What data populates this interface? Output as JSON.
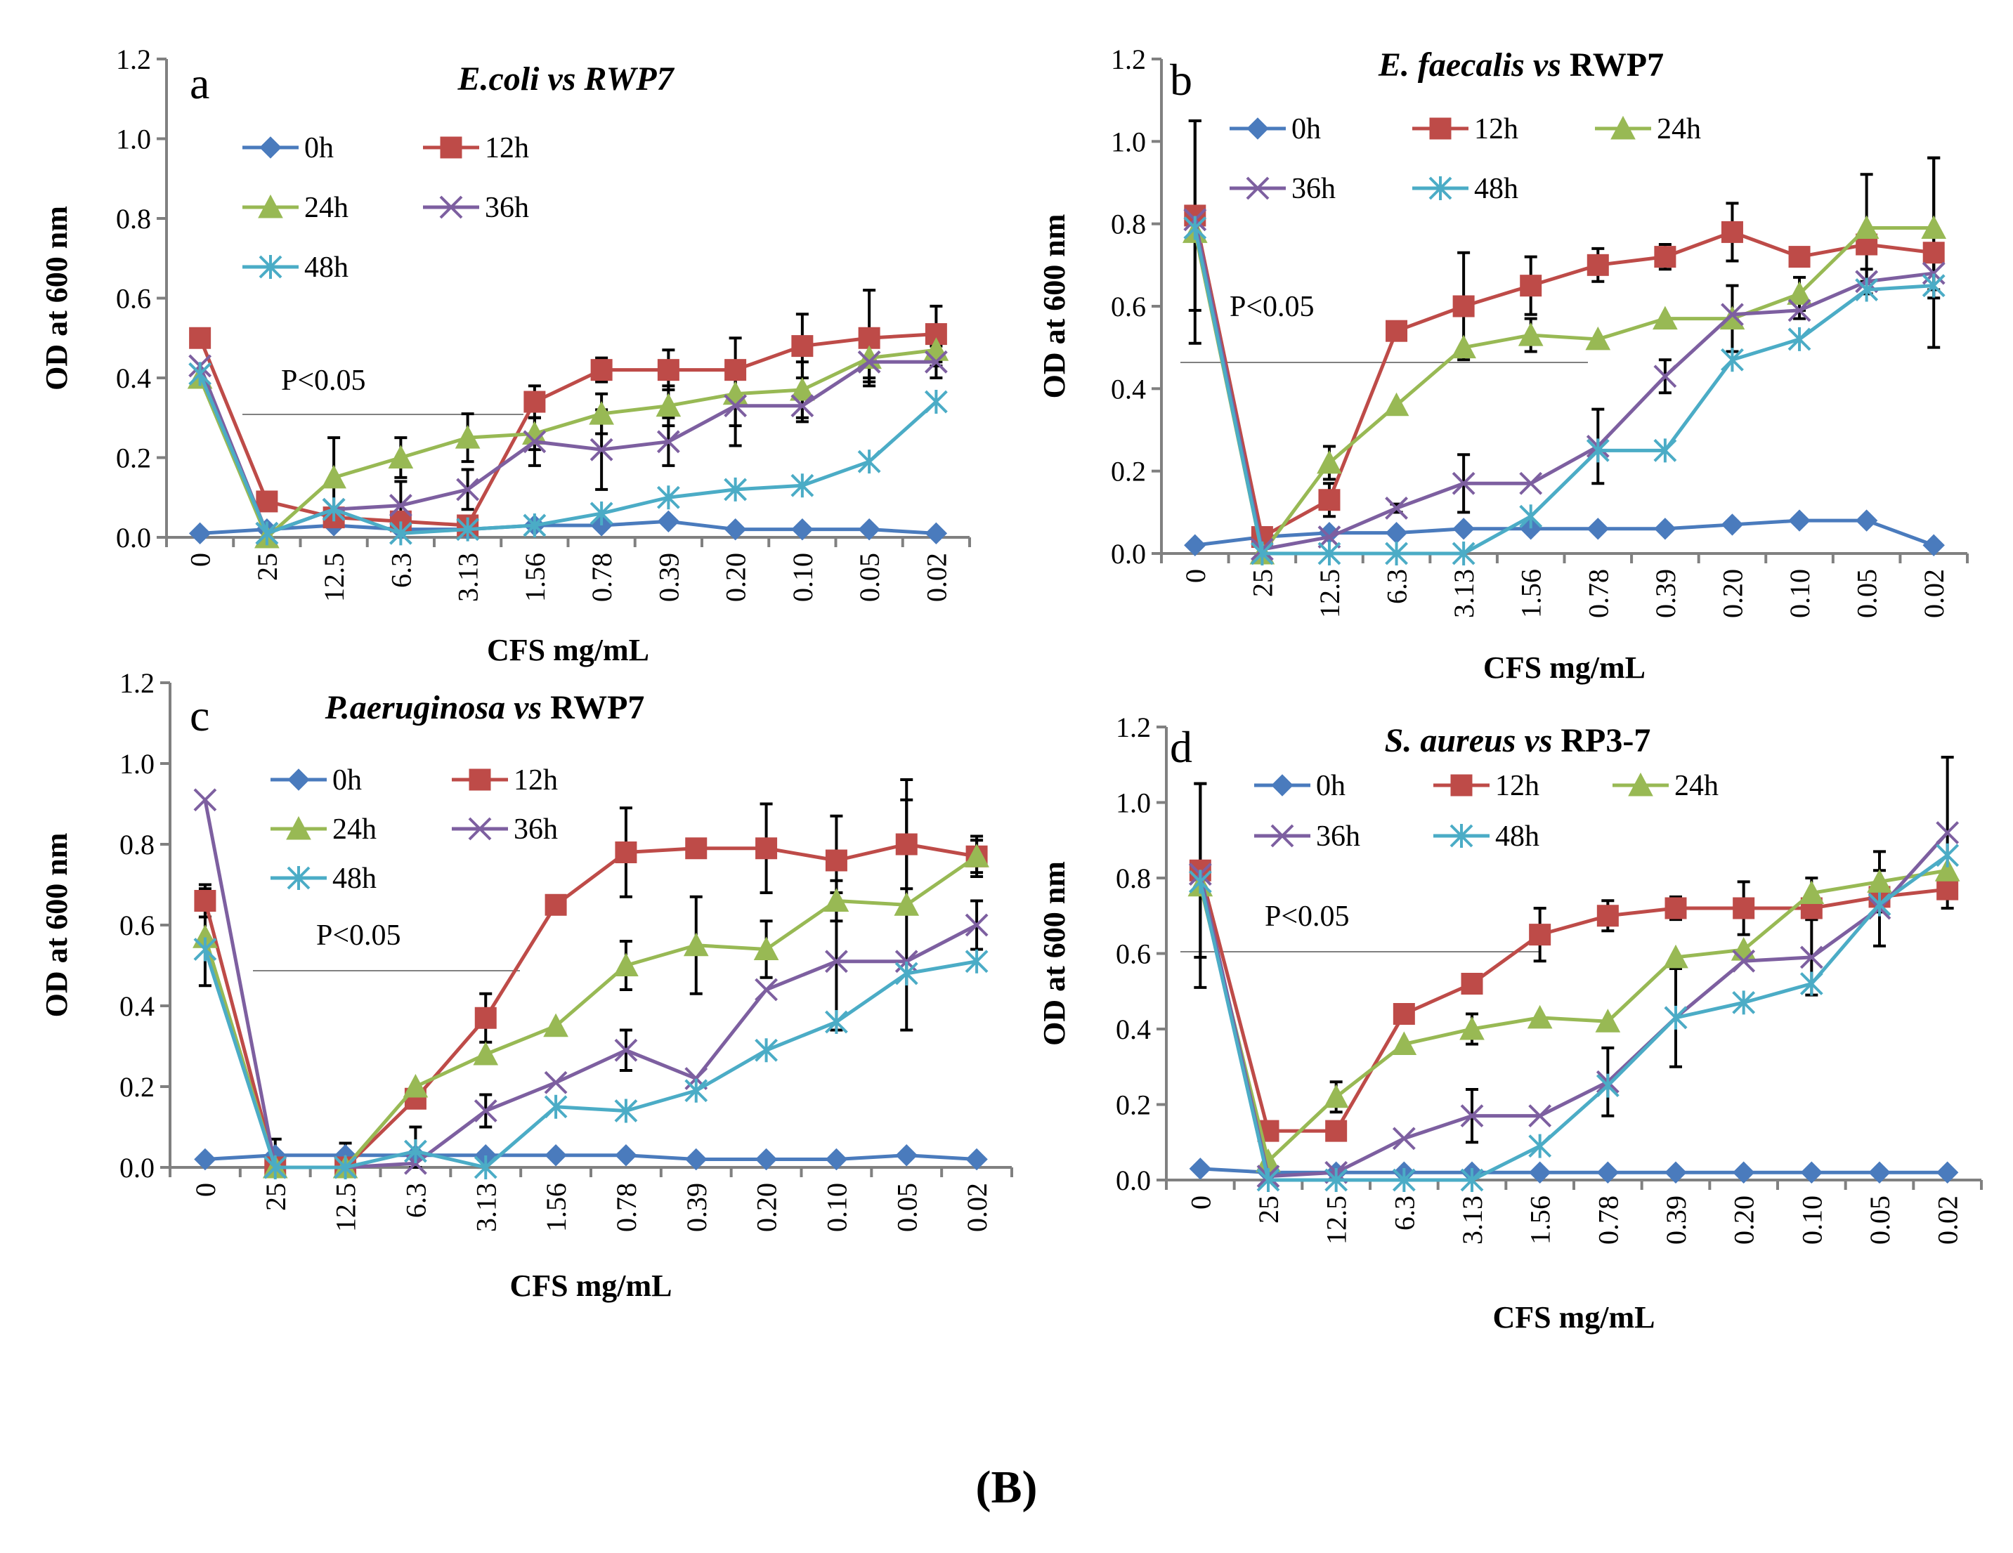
{
  "figure_caption": "(B)",
  "colors": {
    "0h": "#4a7bbd",
    "12h": "#be4b48",
    "24h": "#98b954",
    "36h": "#7d5fa0",
    "48h": "#4bacc6",
    "axis": "#808080",
    "error_bar": "#000000"
  },
  "chart_data": [
    {
      "type": "line",
      "panel_letter": "a",
      "title_italic": "E.coli vs RWP7",
      "title_normal": "",
      "xlabel": "CFS mg/mL",
      "ylabel": "OD at 600 nm",
      "ylim": [
        0,
        1.2
      ],
      "yticks": [
        "0.0",
        "0.2",
        "0.4",
        "0.6",
        "0.8",
        "1.0",
        "1.2"
      ],
      "categories": [
        "0",
        "25",
        "12.5",
        "6.3",
        "3.13",
        "1.56",
        "0.78",
        "0.39",
        "0.20",
        "0.10",
        "0.05",
        "0.02"
      ],
      "annotation": "P<0.05",
      "series": [
        {
          "name": "0h",
          "marker": "diamond",
          "values": [
            0.01,
            0.02,
            0.03,
            0.02,
            0.02,
            0.03,
            0.03,
            0.04,
            0.02,
            0.02,
            0.02,
            0.01
          ],
          "errors": [
            0,
            0,
            0,
            0,
            0,
            0,
            0,
            0,
            0,
            0,
            0,
            0
          ]
        },
        {
          "name": "12h",
          "marker": "square",
          "values": [
            0.5,
            0.09,
            0.05,
            0.04,
            0.03,
            0.34,
            0.42,
            0.42,
            0.42,
            0.48,
            0.5,
            0.51
          ],
          "errors": [
            0,
            0,
            0,
            0,
            0,
            0.04,
            0.03,
            0.05,
            0.08,
            0.08,
            0.12,
            0.07
          ]
        },
        {
          "name": "24h",
          "marker": "triangle",
          "values": [
            0.4,
            0.0,
            0.15,
            0.2,
            0.25,
            0.26,
            0.31,
            0.33,
            0.36,
            0.37,
            0.45,
            0.47
          ],
          "errors": [
            0,
            0,
            0.1,
            0.05,
            0.06,
            0.04,
            0.05,
            0.05,
            0.08,
            0.07,
            0.05,
            0.04
          ]
        },
        {
          "name": "36h",
          "marker": "x",
          "values": [
            0.43,
            0.01,
            0.07,
            0.08,
            0.12,
            0.24,
            0.22,
            0.24,
            0.33,
            0.33,
            0.44,
            0.44
          ],
          "errors": [
            0,
            0,
            0,
            0.06,
            0.05,
            0.06,
            0.1,
            0.06,
            0.1,
            0.04,
            0.05,
            0.04
          ]
        },
        {
          "name": "48h",
          "marker": "asterisk",
          "values": [
            0.41,
            0.01,
            0.07,
            0.01,
            0.02,
            0.03,
            0.06,
            0.1,
            0.12,
            0.13,
            0.19,
            0.34
          ],
          "errors": [
            0,
            0,
            0,
            0,
            0,
            0,
            0,
            0,
            0,
            0,
            0,
            0
          ]
        }
      ],
      "legend_rows": [
        [
          "0h",
          "12h"
        ],
        [
          "24h",
          "36h"
        ],
        [
          "48h"
        ]
      ]
    },
    {
      "type": "line",
      "panel_letter": "b",
      "title_italic": "E. faecalis vs",
      "title_normal": "RWP7",
      "xlabel": "CFS mg/mL",
      "ylabel": "OD at 600 nm",
      "ylim": [
        0,
        1.2
      ],
      "yticks": [
        "0.0",
        "0.2",
        "0.4",
        "0.6",
        "0.8",
        "1.0",
        "1.2"
      ],
      "categories": [
        "0",
        "25",
        "12.5",
        "6.3",
        "3.13",
        "1.56",
        "0.78",
        "0.39",
        "0.20",
        "0.10",
        "0.05",
        "0.02"
      ],
      "annotation": "P<0.05",
      "series": [
        {
          "name": "0h",
          "marker": "diamond",
          "values": [
            0.02,
            0.04,
            0.05,
            0.05,
            0.06,
            0.06,
            0.06,
            0.06,
            0.07,
            0.08,
            0.08,
            0.02
          ],
          "errors": [
            0,
            0,
            0,
            0,
            0,
            0,
            0,
            0,
            0,
            0,
            0,
            0
          ]
        },
        {
          "name": "12h",
          "marker": "square",
          "values": [
            0.82,
            0.04,
            0.13,
            0.54,
            0.6,
            0.65,
            0.7,
            0.72,
            0.78,
            0.72,
            0.75,
            0.73
          ],
          "errors": [
            0.23,
            0,
            0.04,
            0,
            0.13,
            0.07,
            0.04,
            0.03,
            0.07,
            0,
            0,
            0.23
          ]
        },
        {
          "name": "24h",
          "marker": "triangle",
          "values": [
            0.78,
            0.0,
            0.22,
            0.36,
            0.5,
            0.53,
            0.52,
            0.57,
            0.57,
            0.63,
            0.79,
            0.79
          ],
          "errors": [
            0.27,
            0,
            0.04,
            0,
            0,
            0.04,
            0,
            0,
            0.08,
            0.04,
            0.13,
            0.17
          ]
        },
        {
          "name": "36h",
          "marker": "x",
          "values": [
            0.81,
            0.01,
            0.04,
            0.11,
            0.17,
            0.17,
            0.26,
            0.43,
            0.58,
            0.59,
            0.66,
            0.68
          ],
          "errors": [
            0,
            0,
            0,
            0.01,
            0.07,
            0,
            0.09,
            0.04,
            0,
            0.02,
            0.03,
            0.04
          ]
        },
        {
          "name": "48h",
          "marker": "asterisk",
          "values": [
            0.79,
            0.0,
            0.0,
            0.0,
            0.0,
            0.09,
            0.25,
            0.25,
            0.47,
            0.52,
            0.64,
            0.65
          ],
          "errors": [
            0,
            0,
            0,
            0,
            0,
            0,
            0,
            0,
            0,
            0,
            0,
            0
          ]
        }
      ],
      "legend_rows": [
        [
          "0h",
          "12h",
          "24h"
        ],
        [
          "36h",
          "48h"
        ]
      ]
    },
    {
      "type": "line",
      "panel_letter": "c",
      "title_italic": "P.aeruginosa vs",
      "title_normal": "RWP7",
      "xlabel": "CFS mg/mL",
      "ylabel": "OD at 600 nm",
      "ylim": [
        0,
        1.2
      ],
      "yticks": [
        "0.0",
        "0.2",
        "0.4",
        "0.6",
        "0.8",
        "1.0",
        "1.2"
      ],
      "categories": [
        "0",
        "25",
        "12.5",
        "6.3",
        "3.13",
        "1.56",
        "0.78",
        "0.39",
        "0.20",
        "0.10",
        "0.05",
        "0.02"
      ],
      "annotation": "P<0.05",
      "series": [
        {
          "name": "0h",
          "marker": "diamond",
          "values": [
            0.02,
            0.03,
            0.03,
            0.03,
            0.03,
            0.03,
            0.03,
            0.02,
            0.02,
            0.02,
            0.03,
            0.02
          ],
          "errors": [
            0,
            0.04,
            0.03,
            0,
            0,
            0,
            0,
            0,
            0,
            0,
            0,
            0
          ]
        },
        {
          "name": "12h",
          "marker": "square",
          "values": [
            0.66,
            0.0,
            0.0,
            0.17,
            0.37,
            0.65,
            0.78,
            0.79,
            0.79,
            0.76,
            0.8,
            0.77
          ],
          "errors": [
            0.04,
            0,
            0,
            0,
            0.06,
            0,
            0.11,
            0,
            0.11,
            0.11,
            0.11,
            0.05
          ]
        },
        {
          "name": "24h",
          "marker": "triangle",
          "values": [
            0.57,
            0.0,
            0.0,
            0.2,
            0.28,
            0.35,
            0.5,
            0.55,
            0.54,
            0.66,
            0.65,
            0.77
          ],
          "errors": [
            0.12,
            0,
            0,
            0,
            0,
            0,
            0.06,
            0.12,
            0.07,
            0.05,
            0.31,
            0.04
          ]
        },
        {
          "name": "36h",
          "marker": "x",
          "values": [
            0.91,
            0.0,
            0.0,
            0.01,
            0.14,
            0.21,
            0.29,
            0.22,
            0.44,
            0.51,
            0.51,
            0.6
          ],
          "errors": [
            0,
            0,
            0,
            0,
            0.04,
            0,
            0.05,
            0,
            0,
            0.17,
            0,
            0.06
          ]
        },
        {
          "name": "48h",
          "marker": "asterisk",
          "values": [
            0.54,
            0.0,
            0.0,
            0.04,
            0.0,
            0.15,
            0.14,
            0.19,
            0.29,
            0.36,
            0.48,
            0.51
          ],
          "errors": [
            0,
            0,
            0,
            0.06,
            0,
            0,
            0,
            0,
            0,
            0,
            0,
            0
          ]
        }
      ],
      "legend_rows": [
        [
          "0h",
          "12h"
        ],
        [
          "24h",
          "36h"
        ],
        [
          "48h"
        ]
      ]
    },
    {
      "type": "line",
      "panel_letter": "d",
      "title_italic": "S. aureus vs",
      "title_normal": "RP3-7",
      "xlabel": "CFS mg/mL",
      "ylabel": "OD at 600 nm",
      "ylim": [
        0,
        1.2
      ],
      "yticks": [
        "0.0",
        "0.2",
        "0.4",
        "0.6",
        "0.8",
        "1.0",
        "1.2"
      ],
      "categories": [
        "0",
        "25",
        "12.5",
        "6.3",
        "3.13",
        "1.56",
        "0.78",
        "0.39",
        "0.20",
        "0.10",
        "0.05",
        "0.02"
      ],
      "annotation": "P<0.05",
      "series": [
        {
          "name": "0h",
          "marker": "diamond",
          "values": [
            0.03,
            0.02,
            0.02,
            0.02,
            0.02,
            0.02,
            0.02,
            0.02,
            0.02,
            0.02,
            0.02,
            0.02
          ],
          "errors": [
            0,
            0,
            0,
            0,
            0,
            0,
            0,
            0,
            0,
            0,
            0,
            0
          ]
        },
        {
          "name": "12h",
          "marker": "square",
          "values": [
            0.82,
            0.13,
            0.13,
            0.44,
            0.52,
            0.65,
            0.7,
            0.72,
            0.72,
            0.72,
            0.75,
            0.77
          ],
          "errors": [
            0.23,
            0.02,
            0.02,
            0,
            0,
            0.07,
            0.04,
            0.03,
            0.07,
            0.03,
            0,
            0
          ]
        },
        {
          "name": "24h",
          "marker": "triangle",
          "values": [
            0.78,
            0.05,
            0.22,
            0.36,
            0.4,
            0.43,
            0.42,
            0.59,
            0.61,
            0.76,
            0.79,
            0.82
          ],
          "errors": [
            0.27,
            0,
            0.04,
            0,
            0.04,
            0,
            0,
            0,
            0,
            0.04,
            0.08,
            0
          ]
        },
        {
          "name": "36h",
          "marker": "x",
          "values": [
            0.81,
            0.01,
            0.02,
            0.11,
            0.17,
            0.17,
            0.26,
            0.43,
            0.58,
            0.59,
            0.72,
            0.92
          ],
          "errors": [
            0,
            0,
            0,
            0,
            0.07,
            0,
            0.09,
            0.13,
            0,
            0.1,
            0.1,
            0.2
          ]
        },
        {
          "name": "48h",
          "marker": "asterisk",
          "values": [
            0.79,
            0.0,
            0.0,
            0.0,
            0.0,
            0.09,
            0.25,
            0.43,
            0.47,
            0.52,
            0.73,
            0.86
          ],
          "errors": [
            0,
            0,
            0,
            0,
            0,
            0,
            0,
            0,
            0,
            0,
            0,
            0
          ]
        }
      ],
      "legend_rows": [
        [
          "0h",
          "12h",
          "24h"
        ],
        [
          "36h",
          "48h"
        ]
      ]
    }
  ]
}
